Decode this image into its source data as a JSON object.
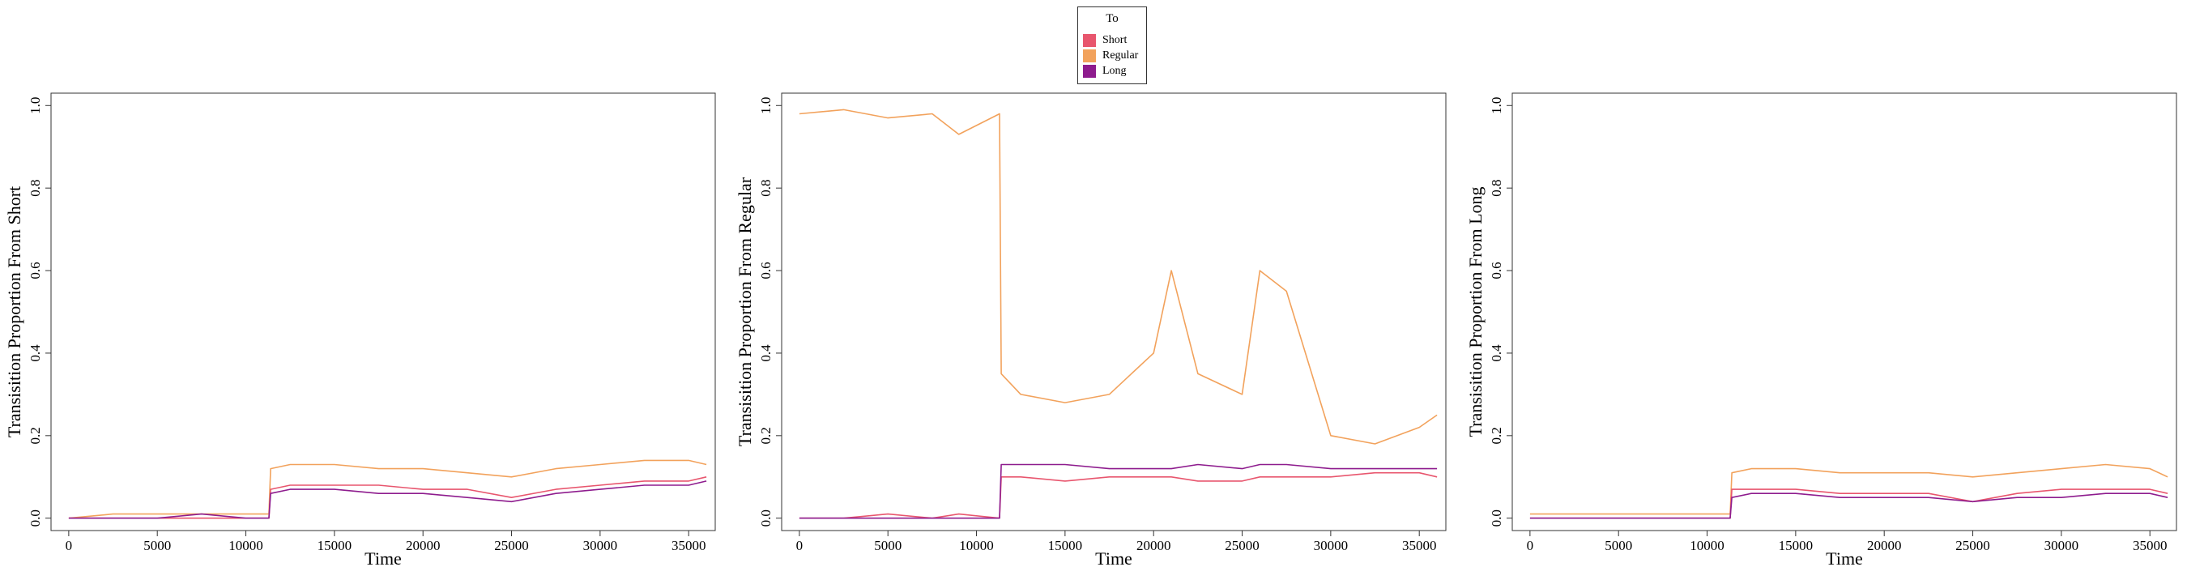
{
  "legend": {
    "title": "To",
    "items": [
      {
        "label": "Short",
        "color": "#E8566E"
      },
      {
        "label": "Regular",
        "color": "#F2A25C"
      },
      {
        "label": "Long",
        "color": "#8E1C8E"
      }
    ]
  },
  "chart_data": [
    {
      "type": "line",
      "title": "",
      "xlabel": "Time",
      "ylabel": "Transisition Proportion From Short",
      "xlim": [
        -1000,
        36500
      ],
      "ylim": [
        -0.03,
        1.03
      ],
      "x_ticks": [
        0,
        5000,
        10000,
        15000,
        20000,
        25000,
        30000,
        35000
      ],
      "x_tick_labels": [
        "0",
        "5000",
        "10000",
        "15000",
        "20000",
        "25000",
        "30000",
        "35000"
      ],
      "y_ticks": [
        0,
        0.2,
        0.4,
        0.6,
        0.8,
        1
      ],
      "y_tick_labels": [
        "0.0",
        "0.2",
        "0.4",
        "0.6",
        "0.8",
        "1.0"
      ],
      "grid": false,
      "x": [
        0,
        2500,
        5000,
        7500,
        10000,
        11300,
        11400,
        12500,
        15000,
        17500,
        20000,
        22500,
        25000,
        27500,
        30000,
        32500,
        35000,
        36000
      ],
      "series": [
        {
          "name": "Short",
          "color": "#E8566E",
          "values": [
            0,
            0,
            0,
            0,
            0,
            0,
            0.07,
            0.08,
            0.08,
            0.08,
            0.07,
            0.07,
            0.05,
            0.07,
            0.08,
            0.09,
            0.09,
            0.1
          ]
        },
        {
          "name": "Regular",
          "color": "#F2A25C",
          "values": [
            0,
            0.01,
            0.01,
            0.01,
            0.01,
            0.01,
            0.12,
            0.13,
            0.13,
            0.12,
            0.12,
            0.11,
            0.1,
            0.12,
            0.13,
            0.14,
            0.14,
            0.13
          ]
        },
        {
          "name": "Long",
          "color": "#8E1C8E",
          "values": [
            0,
            0,
            0,
            0.01,
            0,
            0,
            0.06,
            0.07,
            0.07,
            0.06,
            0.06,
            0.05,
            0.04,
            0.06,
            0.07,
            0.08,
            0.08,
            0.09
          ]
        }
      ]
    },
    {
      "type": "line",
      "title": "",
      "xlabel": "Time",
      "ylabel": "Transisition Proportion From Regular",
      "xlim": [
        -1000,
        36500
      ],
      "ylim": [
        -0.03,
        1.03
      ],
      "x_ticks": [
        0,
        5000,
        10000,
        15000,
        20000,
        25000,
        30000,
        35000
      ],
      "x_tick_labels": [
        "0",
        "5000",
        "10000",
        "15000",
        "20000",
        "25000",
        "30000",
        "35000"
      ],
      "y_ticks": [
        0,
        0.2,
        0.4,
        0.6,
        0.8,
        1
      ],
      "y_tick_labels": [
        "0.0",
        "0.2",
        "0.4",
        "0.6",
        "0.8",
        "1.0"
      ],
      "grid": false,
      "x": [
        0,
        2500,
        5000,
        7500,
        9000,
        11300,
        11400,
        12500,
        15000,
        17500,
        20000,
        21000,
        22500,
        25000,
        26000,
        27500,
        30000,
        32500,
        35000,
        36000
      ],
      "series": [
        {
          "name": "Short",
          "color": "#E8566E",
          "values": [
            0,
            0,
            0.01,
            0,
            0.01,
            0,
            0.1,
            0.1,
            0.09,
            0.1,
            0.1,
            0.1,
            0.09,
            0.09,
            0.1,
            0.1,
            0.1,
            0.11,
            0.11,
            0.1
          ]
        },
        {
          "name": "Regular",
          "color": "#F2A25C",
          "values": [
            0.98,
            0.99,
            0.97,
            0.98,
            0.93,
            0.98,
            0.35,
            0.3,
            0.28,
            0.3,
            0.4,
            0.6,
            0.35,
            0.3,
            0.6,
            0.55,
            0.2,
            0.18,
            0.22,
            0.25
          ]
        },
        {
          "name": "Long",
          "color": "#8E1C8E",
          "values": [
            0,
            0,
            0,
            0,
            0,
            0,
            0.13,
            0.13,
            0.13,
            0.12,
            0.12,
            0.12,
            0.13,
            0.12,
            0.13,
            0.13,
            0.12,
            0.12,
            0.12,
            0.12
          ]
        }
      ]
    },
    {
      "type": "line",
      "title": "",
      "xlabel": "Time",
      "ylabel": "Transisition Proportion From Long",
      "xlim": [
        -1000,
        36500
      ],
      "ylim": [
        -0.03,
        1.03
      ],
      "x_ticks": [
        0,
        5000,
        10000,
        15000,
        20000,
        25000,
        30000,
        35000
      ],
      "x_tick_labels": [
        "0",
        "5000",
        "10000",
        "15000",
        "20000",
        "25000",
        "30000",
        "35000"
      ],
      "y_ticks": [
        0,
        0.2,
        0.4,
        0.6,
        0.8,
        1
      ],
      "y_tick_labels": [
        "0.0",
        "0.2",
        "0.4",
        "0.6",
        "0.8",
        "1.0"
      ],
      "grid": false,
      "x": [
        0,
        2500,
        5000,
        7500,
        10000,
        11300,
        11400,
        12500,
        15000,
        17500,
        20000,
        22500,
        25000,
        27500,
        30000,
        32500,
        35000,
        36000
      ],
      "series": [
        {
          "name": "Short",
          "color": "#E8566E",
          "values": [
            0,
            0,
            0,
            0,
            0,
            0,
            0.07,
            0.07,
            0.07,
            0.06,
            0.06,
            0.06,
            0.04,
            0.06,
            0.07,
            0.07,
            0.07,
            0.06
          ]
        },
        {
          "name": "Regular",
          "color": "#F2A25C",
          "values": [
            0.01,
            0.01,
            0.01,
            0.01,
            0.01,
            0.01,
            0.11,
            0.12,
            0.12,
            0.11,
            0.11,
            0.11,
            0.1,
            0.11,
            0.12,
            0.13,
            0.12,
            0.1
          ]
        },
        {
          "name": "Long",
          "color": "#8E1C8E",
          "values": [
            0,
            0,
            0,
            0,
            0,
            0,
            0.05,
            0.06,
            0.06,
            0.05,
            0.05,
            0.05,
            0.04,
            0.05,
            0.05,
            0.06,
            0.06,
            0.05
          ]
        }
      ]
    }
  ]
}
